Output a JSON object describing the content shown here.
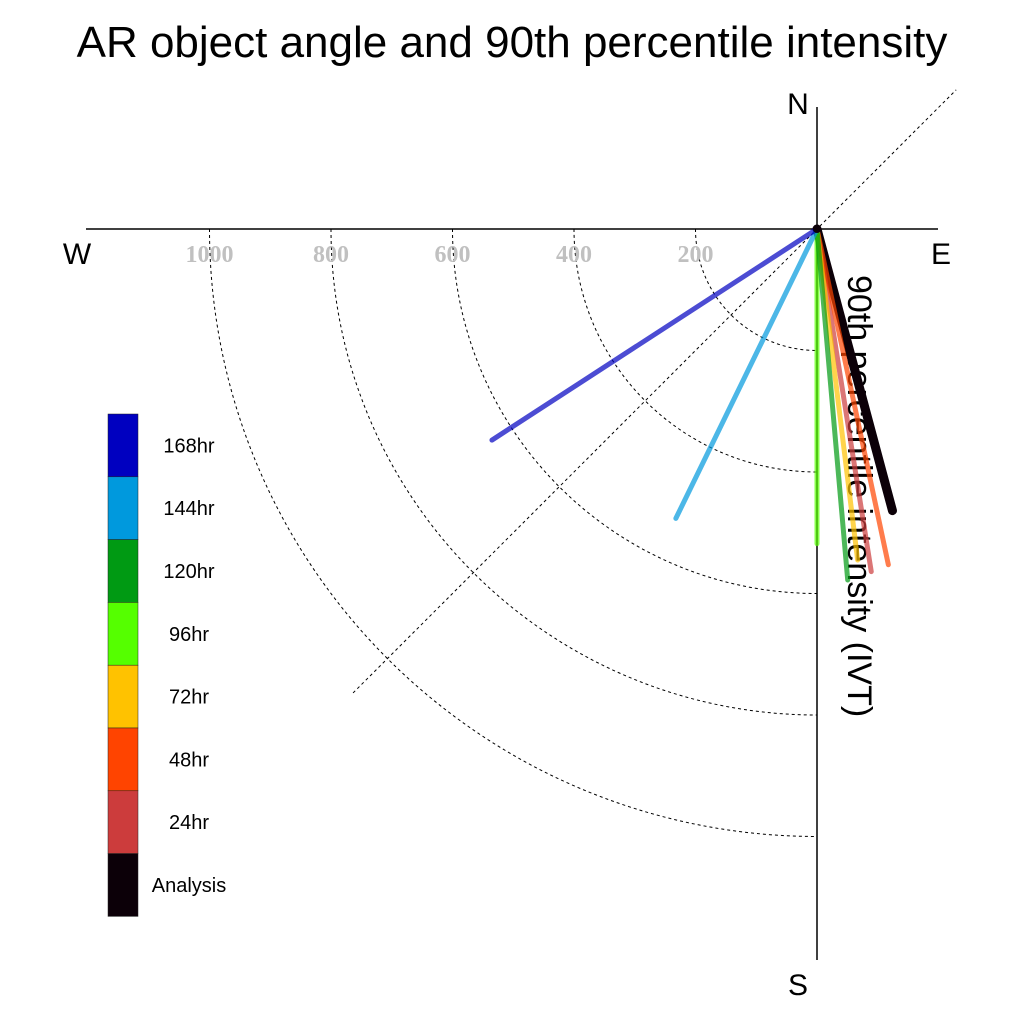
{
  "chart_data": {
    "type": "polar-vector",
    "title": "AR object angle and 90th percentile intensity",
    "radial_label": "90th percentile intensity (IVT)",
    "compass": {
      "north": "N",
      "south": "S",
      "east": "E",
      "west": "W"
    },
    "radial_ticks": [
      200,
      400,
      600,
      800,
      1000
    ],
    "radial_tick_labels": [
      "200",
      "400",
      "600",
      "800",
      "1000"
    ],
    "rmax": 1200,
    "grid": true,
    "legend_position": "left",
    "series": [
      {
        "name": "168hr",
        "color": "#0000c0",
        "intensity": 638,
        "angle_deg": 237
      },
      {
        "name": "144hr",
        "color": "#0099dd",
        "intensity": 530,
        "angle_deg": 206
      },
      {
        "name": "120hr",
        "color": "#009a13",
        "intensity": 580,
        "angle_deg": 175
      },
      {
        "name": "96hr",
        "color": "#55ff00",
        "intensity": 518,
        "angle_deg": 180
      },
      {
        "name": "72hr",
        "color": "#ffc200",
        "intensity": 549,
        "angle_deg": 173
      },
      {
        "name": "48hr",
        "color": "#ff4400",
        "intensity": 565,
        "angle_deg": 168
      },
      {
        "name": "24hr",
        "color": "#cc3c3c",
        "intensity": 571,
        "angle_deg": 171
      },
      {
        "name": "Analysis",
        "color": "#0c0008",
        "intensity": 480,
        "angle_deg": 165
      }
    ]
  }
}
